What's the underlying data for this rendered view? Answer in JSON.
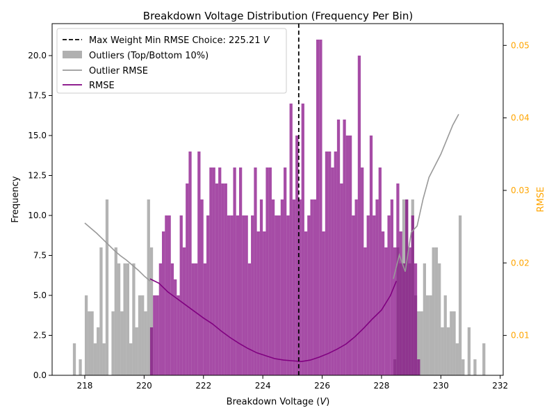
{
  "chart_data": {
    "type": "bar",
    "title": "Breakdown Voltage Distribution (Frequency Per Bin)",
    "xlabel": "Breakdown Voltage (V)",
    "ylabel": "Frequency",
    "y2label": "RMSE",
    "xlim": [
      216.9,
      232.1
    ],
    "ylim": [
      0,
      22
    ],
    "y2lim": [
      0.0045,
      0.053
    ],
    "xticks": [
      "218",
      "220",
      "222",
      "224",
      "226",
      "228",
      "230",
      "232"
    ],
    "yticks": [
      "0.0",
      "2.5",
      "5.0",
      "7.5",
      "10.0",
      "12.5",
      "15.0",
      "17.5",
      "20.0"
    ],
    "y2ticks": [
      "0.01",
      "0.02",
      "0.03",
      "0.04",
      "0.05"
    ],
    "grid": false,
    "legend_position": "top-left",
    "bin_width": 0.1,
    "max_weight_choice": 225.21,
    "colors": {
      "inliers": "#800080",
      "outliers": "#808080",
      "rmse": "#800080",
      "outlier_rmse": "#808080",
      "choice_line": "#000000",
      "rmse_axis": "#ffa500"
    },
    "legend": [
      {
        "label": "Max Weight Min RMSE Choice: 225.21",
        "unit": "V",
        "kind": "dashed-line"
      },
      {
        "label": "Outliers (Top/Bottom 10%)",
        "kind": "patch"
      },
      {
        "label": "Outlier RMSE",
        "kind": "line"
      },
      {
        "label": "RMSE",
        "kind": "line"
      }
    ],
    "series": [
      {
        "name": "Outliers (Top/Bottom 10%)",
        "kind": "histogram",
        "bins": [
          [
            217.6,
            2
          ],
          [
            217.8,
            1
          ],
          [
            218.0,
            5
          ],
          [
            218.1,
            4
          ],
          [
            218.2,
            4
          ],
          [
            218.3,
            2
          ],
          [
            218.4,
            3
          ],
          [
            218.5,
            8
          ],
          [
            218.6,
            2
          ],
          [
            218.7,
            11
          ],
          [
            218.9,
            4
          ],
          [
            219.0,
            8
          ],
          [
            219.1,
            7
          ],
          [
            219.2,
            4
          ],
          [
            219.3,
            7
          ],
          [
            219.4,
            7
          ],
          [
            219.5,
            2
          ],
          [
            219.6,
            7
          ],
          [
            219.7,
            3
          ],
          [
            219.8,
            5
          ],
          [
            219.9,
            5
          ],
          [
            220.0,
            4
          ],
          [
            220.1,
            11
          ],
          [
            220.2,
            8
          ],
          [
            228.4,
            1
          ],
          [
            228.5,
            8
          ],
          [
            228.6,
            7
          ],
          [
            228.7,
            11
          ],
          [
            228.8,
            11
          ],
          [
            228.9,
            7
          ],
          [
            229.0,
            11
          ],
          [
            229.1,
            5
          ],
          [
            229.2,
            4
          ],
          [
            229.3,
            4
          ],
          [
            229.4,
            7
          ],
          [
            229.5,
            5
          ],
          [
            229.6,
            5
          ],
          [
            229.7,
            8
          ],
          [
            229.8,
            8
          ],
          [
            229.9,
            7
          ],
          [
            230.0,
            3
          ],
          [
            230.1,
            5
          ],
          [
            230.2,
            3
          ],
          [
            230.3,
            4
          ],
          [
            230.4,
            4
          ],
          [
            230.5,
            2
          ],
          [
            230.6,
            10
          ],
          [
            230.7,
            1
          ],
          [
            230.8,
            0
          ],
          [
            230.9,
            3
          ],
          [
            231.0,
            0
          ],
          [
            231.1,
            1
          ],
          [
            231.4,
            2
          ]
        ]
      },
      {
        "name": "Inliers",
        "kind": "histogram",
        "bins": [
          [
            220.2,
            3
          ],
          [
            220.3,
            5
          ],
          [
            220.4,
            5
          ],
          [
            220.5,
            7
          ],
          [
            220.6,
            9
          ],
          [
            220.7,
            10
          ],
          [
            220.8,
            10
          ],
          [
            220.9,
            7
          ],
          [
            221.0,
            6
          ],
          [
            221.1,
            5
          ],
          [
            221.2,
            10
          ],
          [
            221.3,
            8
          ],
          [
            221.4,
            12
          ],
          [
            221.5,
            14
          ],
          [
            221.6,
            7
          ],
          [
            221.7,
            7
          ],
          [
            221.8,
            14
          ],
          [
            221.9,
            11
          ],
          [
            222.0,
            7
          ],
          [
            222.1,
            10
          ],
          [
            222.2,
            13
          ],
          [
            222.3,
            13
          ],
          [
            222.4,
            12
          ],
          [
            222.5,
            13
          ],
          [
            222.6,
            12
          ],
          [
            222.7,
            12
          ],
          [
            222.8,
            10
          ],
          [
            222.9,
            10
          ],
          [
            223.0,
            13
          ],
          [
            223.1,
            10
          ],
          [
            223.2,
            13
          ],
          [
            223.3,
            10
          ],
          [
            223.4,
            10
          ],
          [
            223.5,
            7
          ],
          [
            223.6,
            10
          ],
          [
            223.7,
            13
          ],
          [
            223.8,
            9
          ],
          [
            223.9,
            11
          ],
          [
            224.0,
            9
          ],
          [
            224.1,
            13
          ],
          [
            224.2,
            13
          ],
          [
            224.3,
            11
          ],
          [
            224.4,
            10
          ],
          [
            224.5,
            10
          ],
          [
            224.6,
            11
          ],
          [
            224.7,
            13
          ],
          [
            224.8,
            10
          ],
          [
            224.9,
            17
          ],
          [
            225.0,
            11
          ],
          [
            225.1,
            15
          ],
          [
            225.2,
            11
          ],
          [
            225.3,
            17
          ],
          [
            225.4,
            9
          ],
          [
            225.5,
            10
          ],
          [
            225.6,
            11
          ],
          [
            225.7,
            11
          ],
          [
            225.8,
            21
          ],
          [
            225.9,
            21
          ],
          [
            226.0,
            9
          ],
          [
            226.1,
            14
          ],
          [
            226.2,
            14
          ],
          [
            226.3,
            13
          ],
          [
            226.4,
            14
          ],
          [
            226.5,
            16
          ],
          [
            226.6,
            12
          ],
          [
            226.7,
            16
          ],
          [
            226.8,
            15
          ],
          [
            226.9,
            15
          ],
          [
            227.0,
            10
          ],
          [
            227.1,
            11
          ],
          [
            227.2,
            20
          ],
          [
            227.3,
            13
          ],
          [
            227.4,
            8
          ],
          [
            227.5,
            10
          ],
          [
            227.6,
            15
          ],
          [
            227.7,
            10
          ],
          [
            227.8,
            11
          ],
          [
            227.9,
            13
          ],
          [
            228.0,
            9
          ],
          [
            228.1,
            8
          ],
          [
            228.2,
            10
          ],
          [
            228.3,
            11
          ],
          [
            228.4,
            8
          ],
          [
            228.5,
            12
          ],
          [
            228.6,
            9
          ],
          [
            228.7,
            7
          ],
          [
            228.8,
            11
          ],
          [
            228.9,
            8
          ],
          [
            229.0,
            10
          ],
          [
            229.1,
            7
          ],
          [
            229.2,
            1
          ]
        ]
      },
      {
        "name": "Outlier RMSE",
        "kind": "line",
        "x": [
          218.0,
          218.2,
          218.4,
          218.6,
          218.8,
          219.0,
          219.2,
          219.4,
          219.6,
          219.8,
          220.0,
          220.2,
          228.4,
          228.6,
          228.8,
          229.0,
          229.2,
          229.4,
          229.6,
          229.8,
          230.0,
          230.2,
          230.4,
          230.6
        ],
        "y": [
          0.0255,
          0.0248,
          0.0241,
          0.0233,
          0.0225,
          0.0217,
          0.021,
          0.0204,
          0.0197,
          0.019,
          0.0182,
          0.0175,
          0.0178,
          0.0211,
          0.0188,
          0.0242,
          0.0251,
          0.0288,
          0.0318,
          0.0334,
          0.035,
          0.037,
          0.039,
          0.0405
        ]
      },
      {
        "name": "RMSE",
        "kind": "line",
        "x": [
          220.2,
          220.5,
          220.8,
          221.1,
          221.4,
          221.7,
          222.0,
          222.3,
          222.6,
          222.9,
          223.2,
          223.5,
          223.8,
          224.1,
          224.4,
          224.7,
          225.0,
          225.3,
          225.6,
          225.9,
          226.2,
          226.5,
          226.8,
          227.1,
          227.4,
          227.7,
          228.0,
          228.3,
          228.5
        ],
        "y": [
          0.0178,
          0.0172,
          0.016,
          0.0151,
          0.0142,
          0.0133,
          0.0124,
          0.0116,
          0.0106,
          0.0097,
          0.0089,
          0.0082,
          0.0076,
          0.0072,
          0.0068,
          0.0066,
          0.0065,
          0.0064,
          0.0066,
          0.007,
          0.0075,
          0.0081,
          0.0088,
          0.0098,
          0.011,
          0.0123,
          0.0135,
          0.0155,
          0.0175
        ]
      }
    ]
  }
}
